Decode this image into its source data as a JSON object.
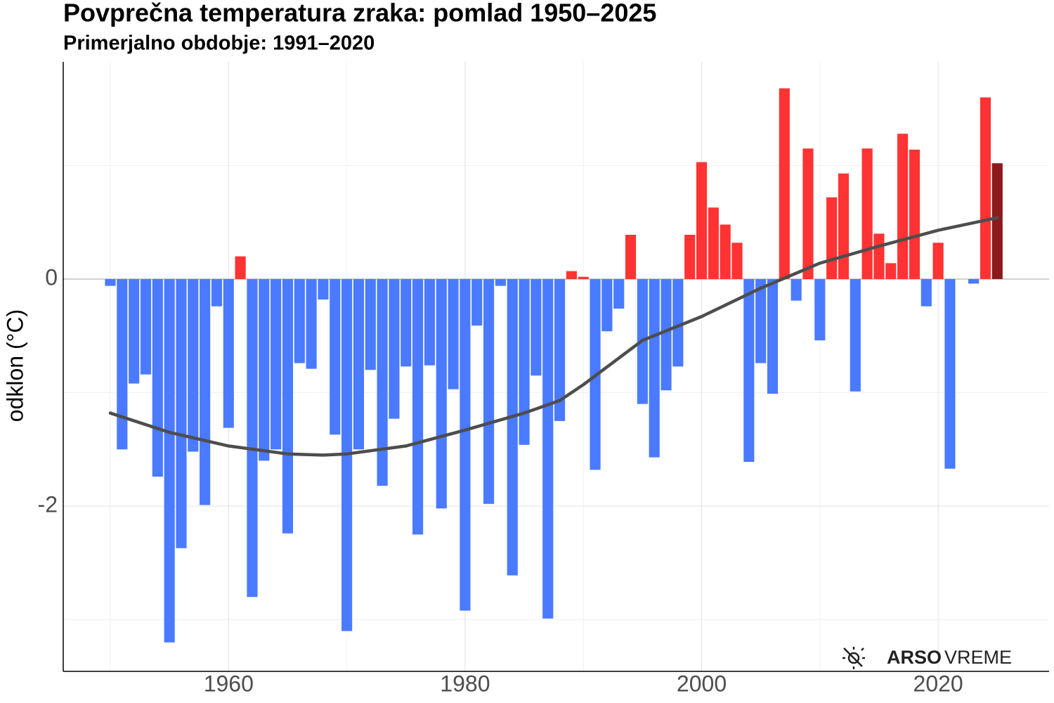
{
  "chart_data": {
    "type": "bar",
    "title": "Povprečna temperatura zraka: pomlad 1950–2025",
    "subtitle": "Primerjalno obdobje: 1991–2020",
    "ylabel": "odklon (°C)",
    "x": [
      1950,
      1951,
      1952,
      1953,
      1954,
      1955,
      1956,
      1957,
      1958,
      1959,
      1960,
      1961,
      1962,
      1963,
      1964,
      1965,
      1966,
      1967,
      1968,
      1969,
      1970,
      1971,
      1972,
      1973,
      1974,
      1975,
      1976,
      1977,
      1978,
      1979,
      1980,
      1981,
      1982,
      1983,
      1984,
      1985,
      1986,
      1987,
      1988,
      1989,
      1990,
      1991,
      1992,
      1993,
      1994,
      1995,
      1996,
      1997,
      1998,
      1999,
      2000,
      2001,
      2002,
      2003,
      2004,
      2005,
      2006,
      2007,
      2008,
      2009,
      2010,
      2011,
      2012,
      2013,
      2014,
      2015,
      2016,
      2017,
      2018,
      2019,
      2020,
      2021,
      2022,
      2023,
      2024,
      2025
    ],
    "values": [
      -0.06,
      -1.5,
      -0.92,
      -0.84,
      -1.74,
      -3.2,
      -2.37,
      -1.52,
      -1.99,
      -0.24,
      -1.31,
      0.2,
      -2.8,
      -1.6,
      -1.5,
      -2.24,
      -0.74,
      -0.79,
      -0.18,
      -1.37,
      -3.1,
      -1.5,
      -0.8,
      -1.82,
      -1.23,
      -0.77,
      -2.25,
      -0.76,
      -2.02,
      -0.97,
      -2.92,
      -0.41,
      -1.98,
      -0.06,
      -2.61,
      -1.46,
      -0.85,
      -2.99,
      -1.25,
      0.07,
      0.02,
      -1.68,
      -0.46,
      -0.26,
      0.39,
      -1.1,
      -1.57,
      -0.98,
      -0.77,
      0.39,
      1.03,
      0.63,
      0.48,
      0.32,
      -1.61,
      -0.74,
      -1.01,
      1.68,
      -0.19,
      1.15,
      -0.54,
      0.72,
      0.93,
      -0.99,
      1.15,
      0.4,
      0.14,
      1.28,
      1.14,
      -0.24,
      0.32,
      -1.67,
      0,
      -0.04,
      1.6,
      1.02
    ],
    "positive_color": "#ff3333",
    "negative_color": "#4a7aff",
    "last_color": "#8b1a1a",
    "trend": {
      "color": "#4d4d4d",
      "x": [
        1950,
        1955,
        1960,
        1965,
        1968,
        1970,
        1975,
        1980,
        1985,
        1988,
        1990,
        1995,
        2000,
        2005,
        2010,
        2015,
        2020,
        2025
      ],
      "values": [
        -1.18,
        -1.35,
        -1.47,
        -1.54,
        -1.55,
        -1.54,
        -1.47,
        -1.33,
        -1.18,
        -1.07,
        -0.93,
        -0.54,
        -0.33,
        -0.08,
        0.14,
        0.29,
        0.43,
        0.54
      ]
    },
    "xlim": [
      1946.02,
      2029.38
    ],
    "ylim": [
      -3.455,
      1.913
    ],
    "xticks": [
      1960,
      1980,
      2000,
      2020
    ],
    "yticks": [
      -2,
      0
    ],
    "xgrid_minor": [
      1950,
      1970,
      1990,
      2010
    ],
    "ygrid_minor": [
      -3,
      -1,
      1
    ],
    "grid": true,
    "logo": {
      "bold": "ARSO",
      "text": "VREME"
    }
  }
}
